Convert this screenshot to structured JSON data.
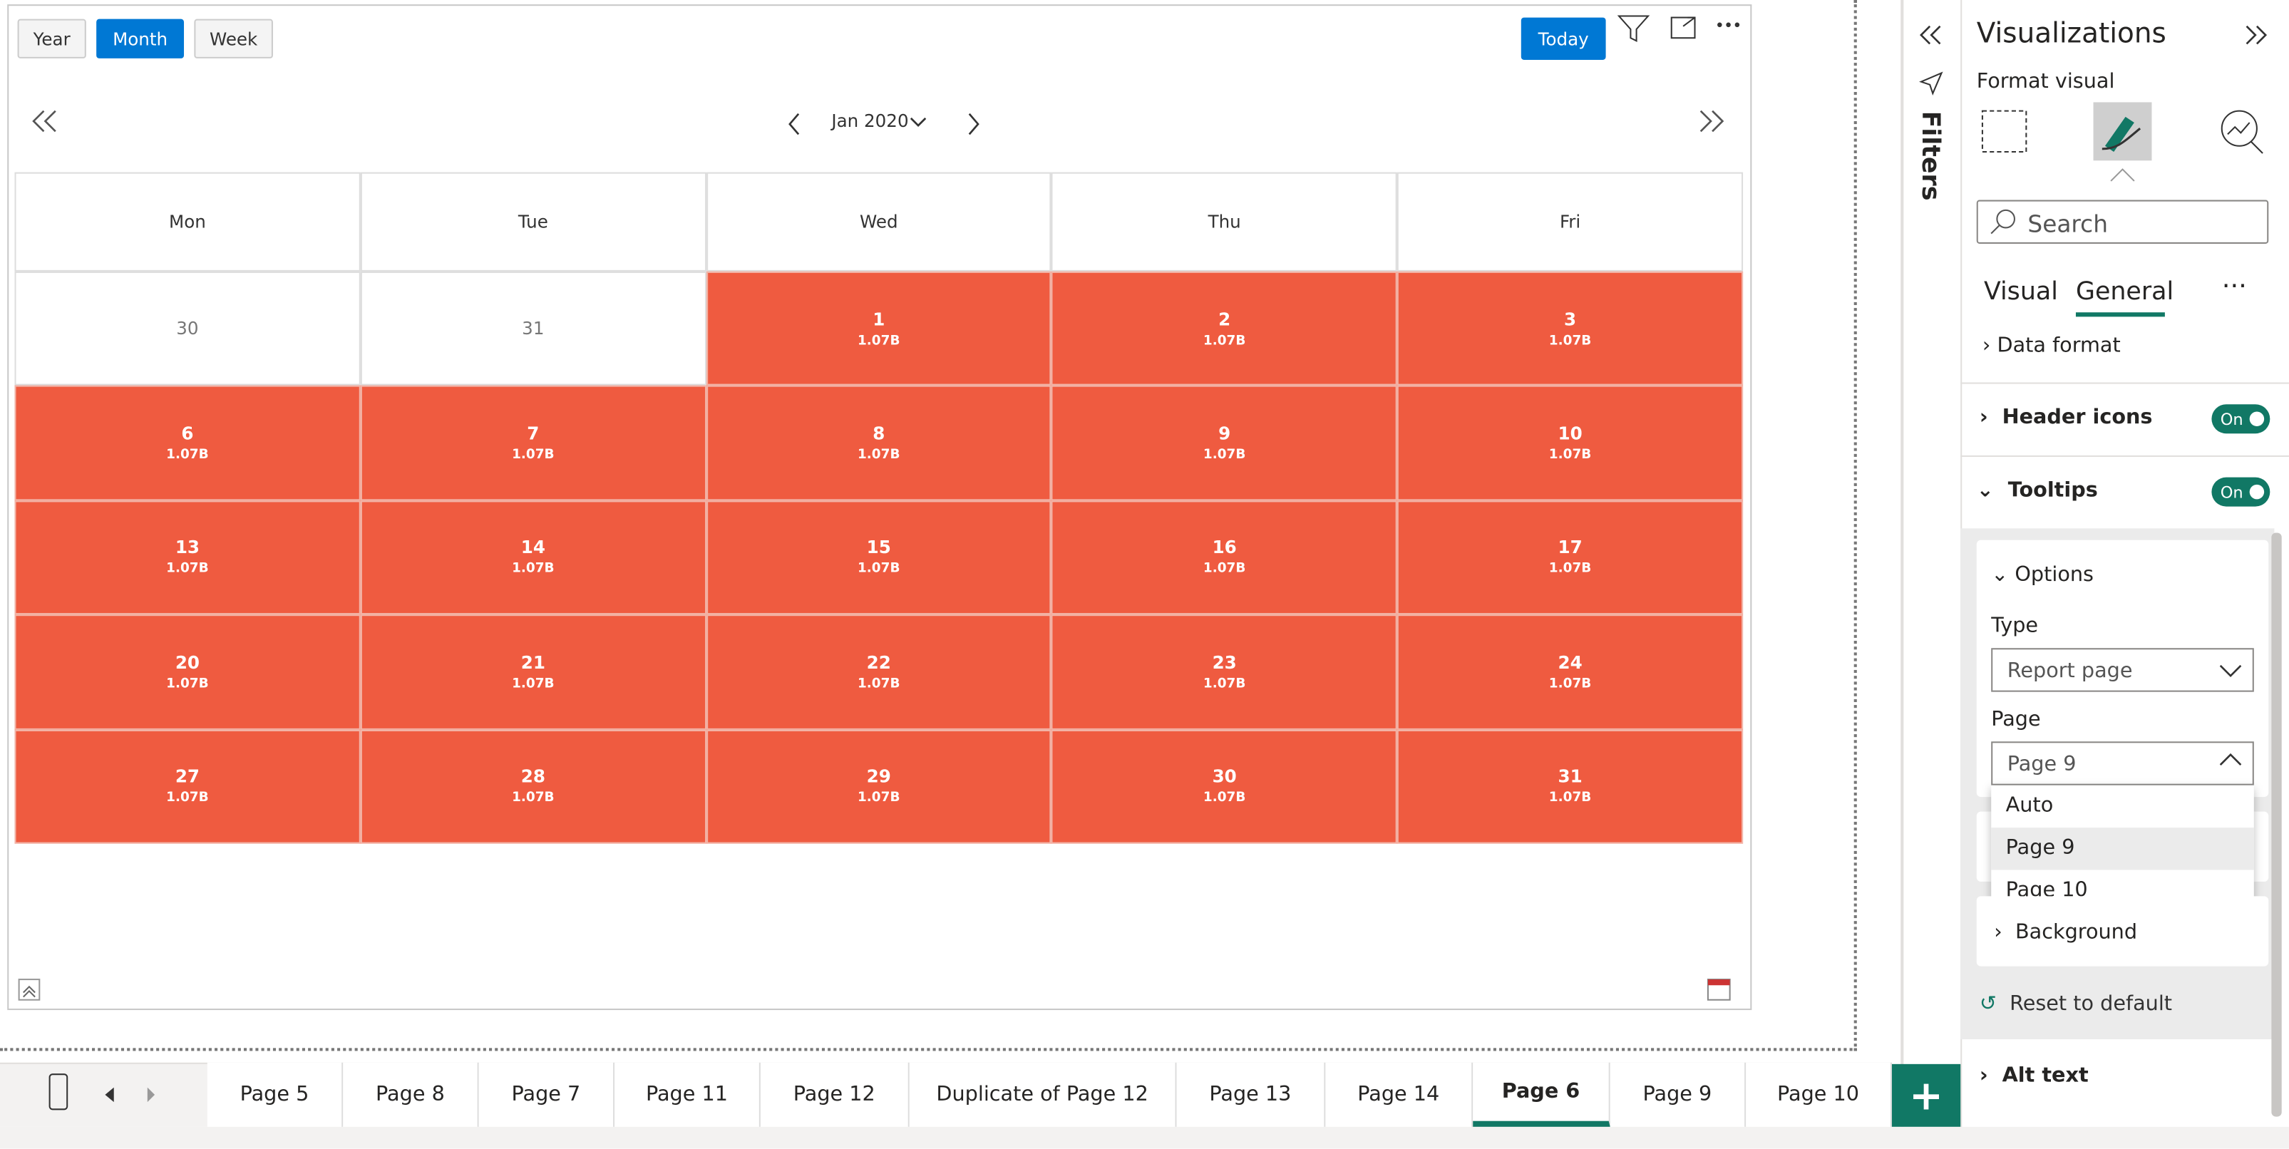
{
  "toolbar": {
    "views": [
      "Year",
      "Month",
      "Week"
    ],
    "active_view": 1,
    "today": "Today"
  },
  "calendar": {
    "period": "Jan 2020",
    "weekdays": [
      "Mon",
      "Tue",
      "Wed",
      "Thu",
      "Fri"
    ],
    "weeks": [
      [
        {
          "day": "30"
        },
        {
          "day": "31"
        },
        {
          "day": "1",
          "value": "1.07B"
        },
        {
          "day": "2",
          "value": "1.07B"
        },
        {
          "day": "3",
          "value": "1.07B"
        }
      ],
      [
        {
          "day": "6",
          "value": "1.07B"
        },
        {
          "day": "7",
          "value": "1.07B"
        },
        {
          "day": "8",
          "value": "1.07B"
        },
        {
          "day": "9",
          "value": "1.07B"
        },
        {
          "day": "10",
          "value": "1.07B"
        }
      ],
      [
        {
          "day": "13",
          "value": "1.07B"
        },
        {
          "day": "14",
          "value": "1.07B"
        },
        {
          "day": "15",
          "value": "1.07B"
        },
        {
          "day": "16",
          "value": "1.07B"
        },
        {
          "day": "17",
          "value": "1.07B"
        }
      ],
      [
        {
          "day": "20",
          "value": "1.07B"
        },
        {
          "day": "21",
          "value": "1.07B"
        },
        {
          "day": "22",
          "value": "1.07B"
        },
        {
          "day": "23",
          "value": "1.07B"
        },
        {
          "day": "24",
          "value": "1.07B"
        }
      ],
      [
        {
          "day": "27",
          "value": "1.07B"
        },
        {
          "day": "28",
          "value": "1.07B"
        },
        {
          "day": "29",
          "value": "1.07B"
        },
        {
          "day": "30",
          "value": "1.07B"
        },
        {
          "day": "31",
          "value": "1.07B"
        }
      ]
    ]
  },
  "filters": {
    "label": "Filters"
  },
  "pane": {
    "title": "Visualizations",
    "subtitle": "Format visual",
    "search": "Search",
    "tabs": [
      "Visual",
      "General"
    ],
    "data_format": "Data format",
    "header_icons": {
      "label": "Header icons",
      "toggle": "On"
    },
    "tooltips": {
      "label": "Tooltips",
      "toggle": "On"
    },
    "options": "Options",
    "type_label": "Type",
    "type_value": "Report page",
    "page_label": "Page",
    "page_value": "Page 9",
    "page_options": [
      "Auto",
      "Page 9",
      "Page 10"
    ],
    "background": "Background",
    "reset": "Reset to default",
    "alt_text": "Alt text"
  },
  "page_tabs": {
    "tabs": [
      "Page 5",
      "Page 8",
      "Page 7",
      "Page 11",
      "Page 12",
      "Duplicate of Page 12",
      "Page 13",
      "Page 14",
      "Page 6",
      "Page 9",
      "Page 10"
    ],
    "active": 8
  }
}
